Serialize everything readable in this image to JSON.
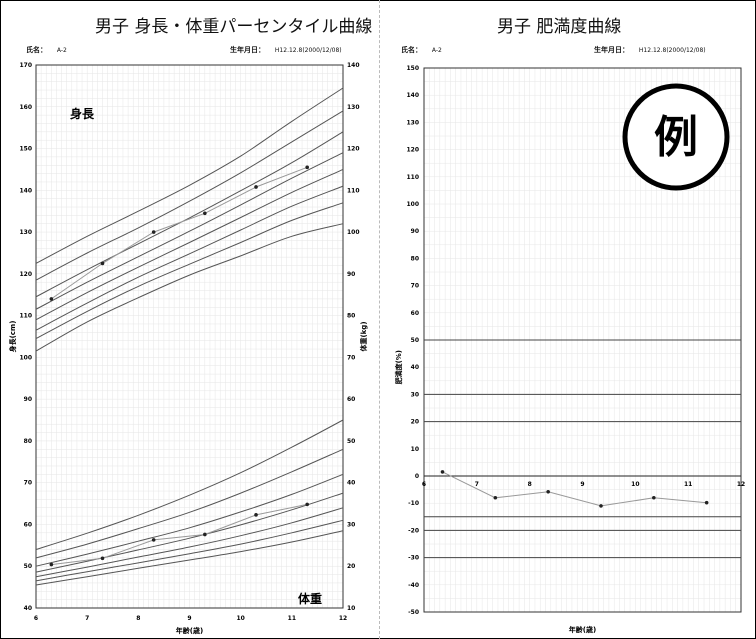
{
  "left": {
    "title": "男子 身長・体重パーセンタイル曲線",
    "name_label": "氏名：",
    "name_value": "A-2",
    "dob_label": "生年月日：",
    "dob_value": "H12.12.8(2000/12/08)"
  },
  "right": {
    "title": "男子 肥満度曲線",
    "name_label": "氏名：",
    "name_value": "A-2",
    "dob_label": "生年月日：",
    "dob_value": "H12.12.8(2000/12/08)",
    "stamp": "例"
  },
  "chart_data": [
    {
      "type": "line",
      "xlabel": "年齢(歳)",
      "ylabel": "身長(cm)",
      "y2label": "体重(kg)",
      "xlim": [
        6,
        12
      ],
      "ylim": [
        40,
        170
      ],
      "y2lim": [
        10,
        140
      ],
      "xticks": [
        6,
        7,
        8,
        9,
        10,
        11,
        12
      ],
      "yticks": [
        40,
        50,
        60,
        70,
        80,
        90,
        100,
        110,
        120,
        130,
        140,
        150,
        160,
        170
      ],
      "y2ticks": [
        10,
        20,
        30,
        40,
        50,
        60,
        70,
        80,
        90,
        100,
        110,
        120,
        130,
        140
      ],
      "height_label": "身長",
      "weight_label": "体重",
      "height_percentile_curves": [
        {
          "x": [
            6,
            7,
            8,
            9,
            10,
            11,
            12
          ],
          "y": [
            101.5,
            108.5,
            114.3,
            119.7,
            124.3,
            129,
            132
          ]
        },
        {
          "x": [
            6,
            7,
            8,
            9,
            10,
            11,
            12
          ],
          "y": [
            104.5,
            111,
            117,
            122.3,
            127.5,
            132.8,
            137
          ]
        },
        {
          "x": [
            6,
            7,
            8,
            9,
            10,
            11,
            12
          ],
          "y": [
            106.5,
            113,
            119.2,
            124.8,
            130.5,
            136.2,
            141
          ]
        },
        {
          "x": [
            6,
            7,
            8,
            9,
            10,
            11,
            12
          ],
          "y": [
            109,
            115.5,
            121.6,
            127.5,
            133.5,
            139.5,
            145
          ]
        },
        {
          "x": [
            6,
            7,
            8,
            9,
            10,
            11,
            12
          ],
          "y": [
            111.5,
            118,
            124.1,
            130.2,
            136.5,
            142.9,
            149
          ]
        },
        {
          "x": [
            6,
            7,
            8,
            9,
            10,
            11,
            12
          ],
          "y": [
            114.5,
            121,
            127.2,
            133.4,
            139.9,
            146.6,
            154
          ]
        },
        {
          "x": [
            6,
            7,
            8,
            9,
            10,
            11,
            12
          ],
          "y": [
            118.5,
            125,
            131,
            137.4,
            144.2,
            151.6,
            159
          ]
        },
        {
          "x": [
            6,
            7,
            8,
            9,
            10,
            11,
            12
          ],
          "y": [
            122.5,
            129,
            135,
            141.2,
            148.2,
            156.5,
            164.5
          ]
        }
      ],
      "weight_percentile_curves": [
        {
          "x": [
            6,
            7,
            8,
            9,
            10,
            11,
            12
          ],
          "y": [
            15.5,
            17.5,
            19.5,
            21.5,
            23.5,
            25.8,
            28.5
          ]
        },
        {
          "x": [
            6,
            7,
            8,
            9,
            10,
            11,
            12
          ],
          "y": [
            16.5,
            18.7,
            20.8,
            23,
            25.3,
            28,
            31
          ]
        },
        {
          "x": [
            6,
            7,
            8,
            9,
            10,
            11,
            12
          ],
          "y": [
            17.5,
            19.8,
            22.2,
            24.6,
            27.3,
            30.4,
            34
          ]
        },
        {
          "x": [
            6,
            7,
            8,
            9,
            10,
            11,
            12
          ],
          "y": [
            18.6,
            21.2,
            23.9,
            26.7,
            29.9,
            33.5,
            37.5
          ]
        },
        {
          "x": [
            6,
            7,
            8,
            9,
            10,
            11,
            12
          ],
          "y": [
            20,
            22.9,
            26,
            29.2,
            33,
            37.2,
            42
          ]
        },
        {
          "x": [
            6,
            7,
            8,
            9,
            10,
            11,
            12
          ],
          "y": [
            22,
            25.3,
            29,
            32.9,
            37.5,
            42.6,
            48
          ]
        },
        {
          "x": [
            6,
            7,
            8,
            9,
            10,
            11,
            12
          ],
          "y": [
            24,
            27.9,
            32.2,
            37,
            42.4,
            48.5,
            55
          ]
        }
      ],
      "series": [
        {
          "metric": "height",
          "x": [
            6.3,
            7.3,
            8.3,
            9.3,
            10.3,
            11.3
          ],
          "y": [
            114,
            122.5,
            130,
            134.5,
            140.8,
            145.5
          ]
        },
        {
          "metric": "weight",
          "x": [
            6.3,
            7.3,
            8.3,
            9.3,
            10.3,
            11.3
          ],
          "y": [
            20.4,
            21.9,
            26.3,
            27.6,
            32.3,
            34.8
          ]
        }
      ]
    },
    {
      "type": "line",
      "xlabel": "年齢(歳)",
      "ylabel": "肥満度(%)",
      "xlim": [
        6,
        12
      ],
      "ylim": [
        -50,
        150
      ],
      "xticks": [
        6,
        7,
        8,
        9,
        10,
        11,
        12
      ],
      "yticks": [
        -50,
        -40,
        -30,
        -20,
        -10,
        0,
        10,
        20,
        30,
        40,
        50,
        60,
        70,
        80,
        90,
        100,
        110,
        120,
        130,
        140,
        150
      ],
      "reference_lines": [
        50,
        30,
        20,
        -15,
        -20,
        -30
      ],
      "series": [
        {
          "x": [
            6.35,
            7.35,
            8.35,
            9.35,
            10.35,
            11.35
          ],
          "y": [
            1.5,
            -8,
            -5.8,
            -11,
            -8,
            -9.8
          ]
        }
      ]
    }
  ]
}
